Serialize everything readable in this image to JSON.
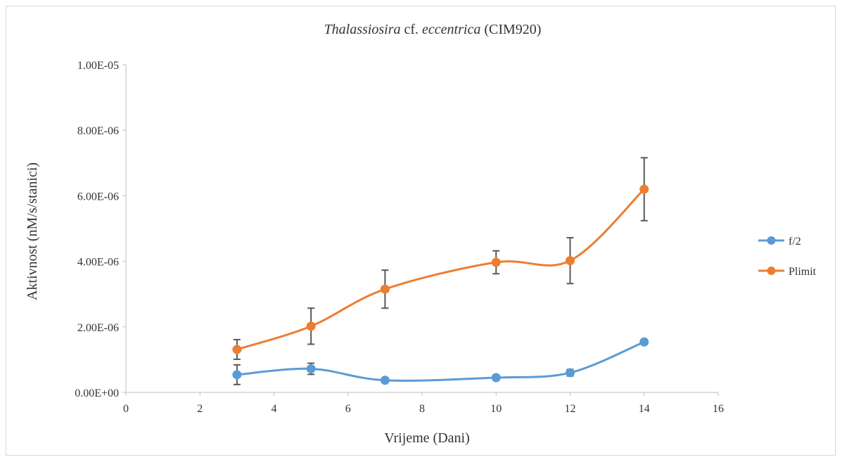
{
  "chart_data": {
    "type": "line",
    "title": {
      "species": "Thalassiosira",
      "middle": " cf. ",
      "epithet": "eccentrica",
      "strain": " (CIM920)"
    },
    "xlabel": "Vrijeme (Dani)",
    "ylabel": "Aktivnost  (nM/s/stanici)",
    "xlim": [
      0,
      16
    ],
    "ylim": [
      0,
      1e-05
    ],
    "x_ticks": [
      "0",
      "2",
      "4",
      "6",
      "8",
      "10",
      "12",
      "14",
      "16"
    ],
    "y_ticks": [
      "0.00E+00",
      "2.00E-06",
      "4.00E-06",
      "6.00E-06",
      "8.00E-06",
      "1.00E-05"
    ],
    "x": [
      3,
      5,
      7,
      10,
      12,
      14
    ],
    "grid": false,
    "legend_position": "right",
    "series": [
      {
        "name": "f/2",
        "color": "#5b9bd5",
        "values": [
          5.4e-07,
          7.2e-07,
          3.7e-07,
          4.5e-07,
          6e-07,
          1.54e-06
        ],
        "errors": [
          3e-07,
          1.7e-07,
          0,
          0,
          1e-07,
          0
        ]
      },
      {
        "name": "Plimit",
        "color": "#ed7d31",
        "values": [
          1.31e-06,
          2.02e-06,
          3.15e-06,
          3.97e-06,
          4.02e-06,
          6.2e-06
        ],
        "errors": [
          3e-07,
          5.5e-07,
          5.8e-07,
          3.5e-07,
          7e-07,
          9.6e-07
        ]
      }
    ]
  }
}
